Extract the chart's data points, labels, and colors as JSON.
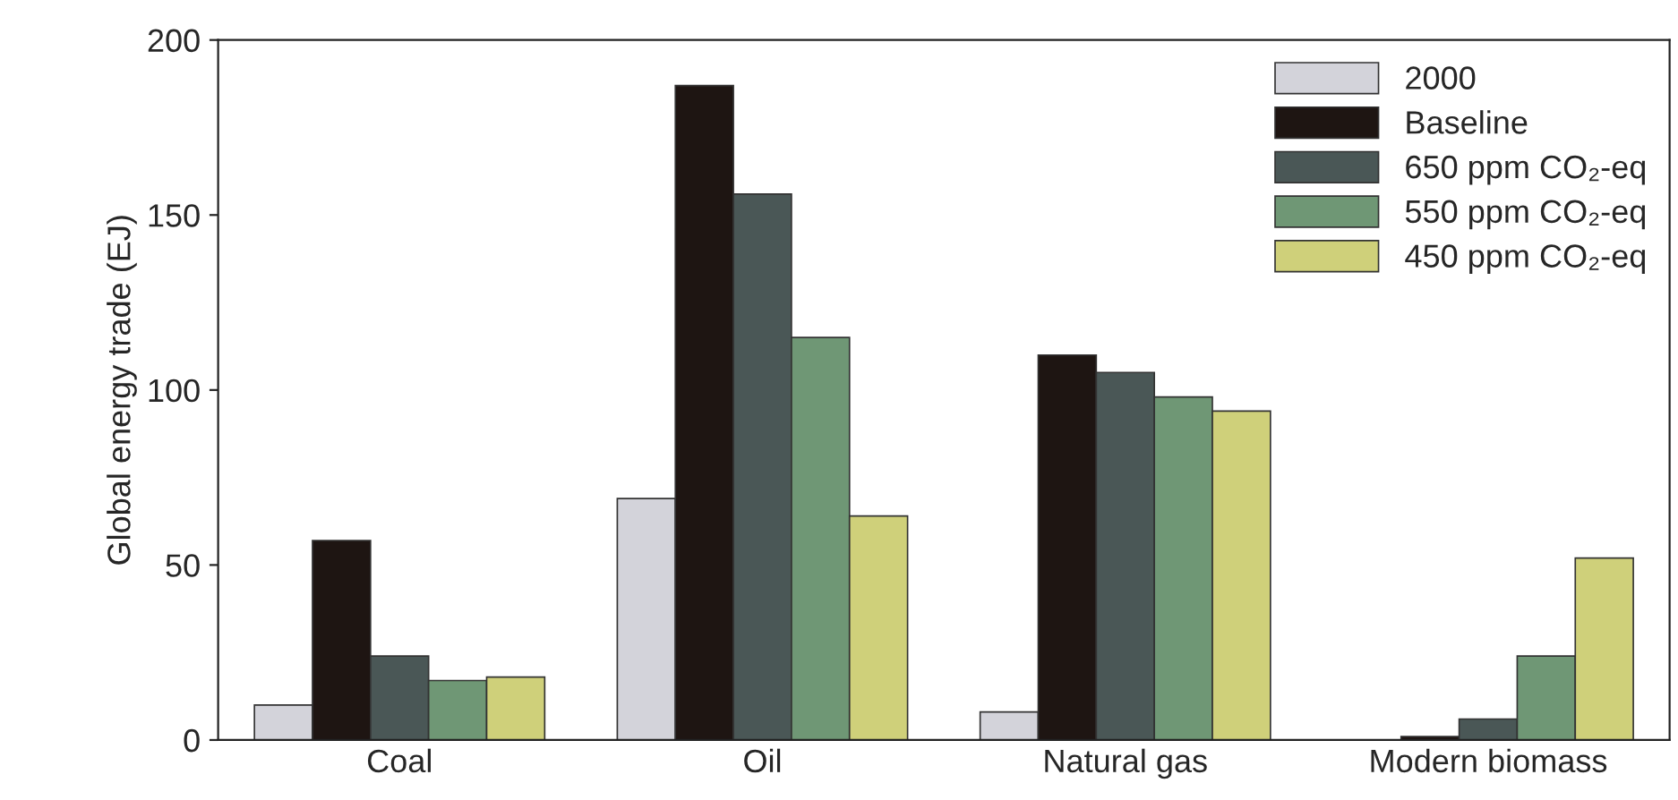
{
  "chart_data": {
    "type": "bar",
    "ylabel": "Global energy trade (EJ)",
    "categories": [
      "Coal",
      "Oil",
      "Natural gas",
      "Modern biomass"
    ],
    "series": [
      {
        "name": "2000",
        "color": "#d3d3da",
        "values": [
          10,
          69,
          8,
          null
        ]
      },
      {
        "name": "Baseline",
        "color": "#1e1512",
        "values": [
          57,
          187,
          110,
          1
        ]
      },
      {
        "name": "650 ppm CO₂-eq",
        "color": "#4a5756",
        "values": [
          24,
          156,
          105,
          6
        ]
      },
      {
        "name": "550 ppm CO₂-eq",
        "color": "#6f9775",
        "values": [
          17,
          115,
          98,
          24
        ]
      },
      {
        "name": "450 ppm CO₂-eq",
        "color": "#cfd07a",
        "values": [
          18,
          64,
          94,
          52
        ]
      }
    ],
    "ylim": [
      0,
      200
    ],
    "yticks": [
      0,
      50,
      100,
      150,
      200
    ],
    "grid": false,
    "legend": "top right"
  }
}
